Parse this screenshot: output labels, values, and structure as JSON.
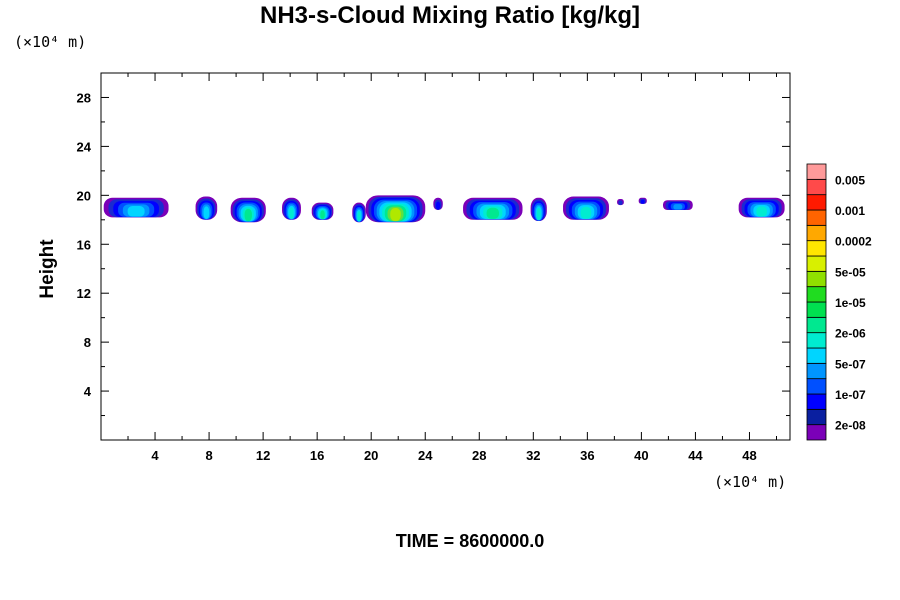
{
  "chart_data": {
    "type": "heatmap",
    "title": "NH3-s-Cloud Mixing Ratio [kg/kg]",
    "ylabel": "Height",
    "xlabel": "",
    "x_unit_label": "(×10⁴ m)",
    "y_unit_label": "(×10⁴ m)",
    "footer": "TIME = 8600000.0",
    "xlim": [
      0,
      51
    ],
    "ylim": [
      0,
      30
    ],
    "x_ticks": [
      4,
      8,
      12,
      16,
      20,
      24,
      28,
      32,
      36,
      40,
      44,
      48
    ],
    "y_ticks": [
      4,
      8,
      12,
      16,
      20,
      24,
      28
    ],
    "x_tick_labels": [
      "4",
      "8",
      "12",
      "16",
      "20",
      "24",
      "28",
      "32",
      "36",
      "40",
      "44",
      "48"
    ],
    "y_tick_labels": [
      "4",
      "8",
      "12",
      "16",
      "20",
      "24",
      "28"
    ],
    "colorbar": {
      "colors": [
        "#7b00b8",
        "#0a1fa0",
        "#0000ff",
        "#0050ff",
        "#0095ff",
        "#00d5ff",
        "#00ecd0",
        "#00e890",
        "#00e050",
        "#20dc20",
        "#90e000",
        "#d8f000",
        "#ffe600",
        "#ffa800",
        "#ff6400",
        "#ff1a00",
        "#ff4a4a",
        "#ff9a9a"
      ],
      "labels": [
        "2e-08",
        "1e-07",
        "5e-07",
        "2e-06",
        "1e-05",
        "5e-05",
        "0.0002",
        "0.001",
        "0.005"
      ]
    },
    "cloud_features": [
      {
        "x_start": 0.2,
        "x_end": 5.0,
        "y_bottom": 18.2,
        "y_top": 19.8,
        "max_level": 5
      },
      {
        "x_start": 7.0,
        "x_end": 8.6,
        "y_bottom": 18.0,
        "y_top": 19.9,
        "max_level": 5
      },
      {
        "x_start": 9.6,
        "x_end": 12.2,
        "y_bottom": 17.8,
        "y_top": 19.8,
        "max_level": 7
      },
      {
        "x_start": 13.4,
        "x_end": 14.8,
        "y_bottom": 18.0,
        "y_top": 19.8,
        "max_level": 6
      },
      {
        "x_start": 15.6,
        "x_end": 17.2,
        "y_bottom": 18.0,
        "y_top": 19.4,
        "max_level": 7
      },
      {
        "x_start": 18.6,
        "x_end": 19.6,
        "y_bottom": 17.8,
        "y_top": 19.4,
        "max_level": 6
      },
      {
        "x_start": 19.6,
        "x_end": 24.0,
        "y_bottom": 17.8,
        "y_top": 20.0,
        "max_level": 9
      },
      {
        "x_start": 24.6,
        "x_end": 25.3,
        "y_bottom": 18.8,
        "y_top": 19.8,
        "max_level": 2
      },
      {
        "x_start": 26.8,
        "x_end": 31.2,
        "y_bottom": 18.0,
        "y_top": 19.8,
        "max_level": 7
      },
      {
        "x_start": 31.8,
        "x_end": 33.0,
        "y_bottom": 17.9,
        "y_top": 19.8,
        "max_level": 6
      },
      {
        "x_start": 34.2,
        "x_end": 37.6,
        "y_bottom": 18.0,
        "y_top": 19.9,
        "max_level": 6
      },
      {
        "x_start": 38.2,
        "x_end": 38.7,
        "y_bottom": 19.2,
        "y_top": 19.7,
        "max_level": 1
      },
      {
        "x_start": 39.8,
        "x_end": 40.4,
        "y_bottom": 19.3,
        "y_top": 19.8,
        "max_level": 2
      },
      {
        "x_start": 41.6,
        "x_end": 43.8,
        "y_bottom": 18.8,
        "y_top": 19.6,
        "max_level": 4
      },
      {
        "x_start": 47.2,
        "x_end": 50.6,
        "y_bottom": 18.2,
        "y_top": 19.8,
        "max_level": 6
      }
    ]
  }
}
